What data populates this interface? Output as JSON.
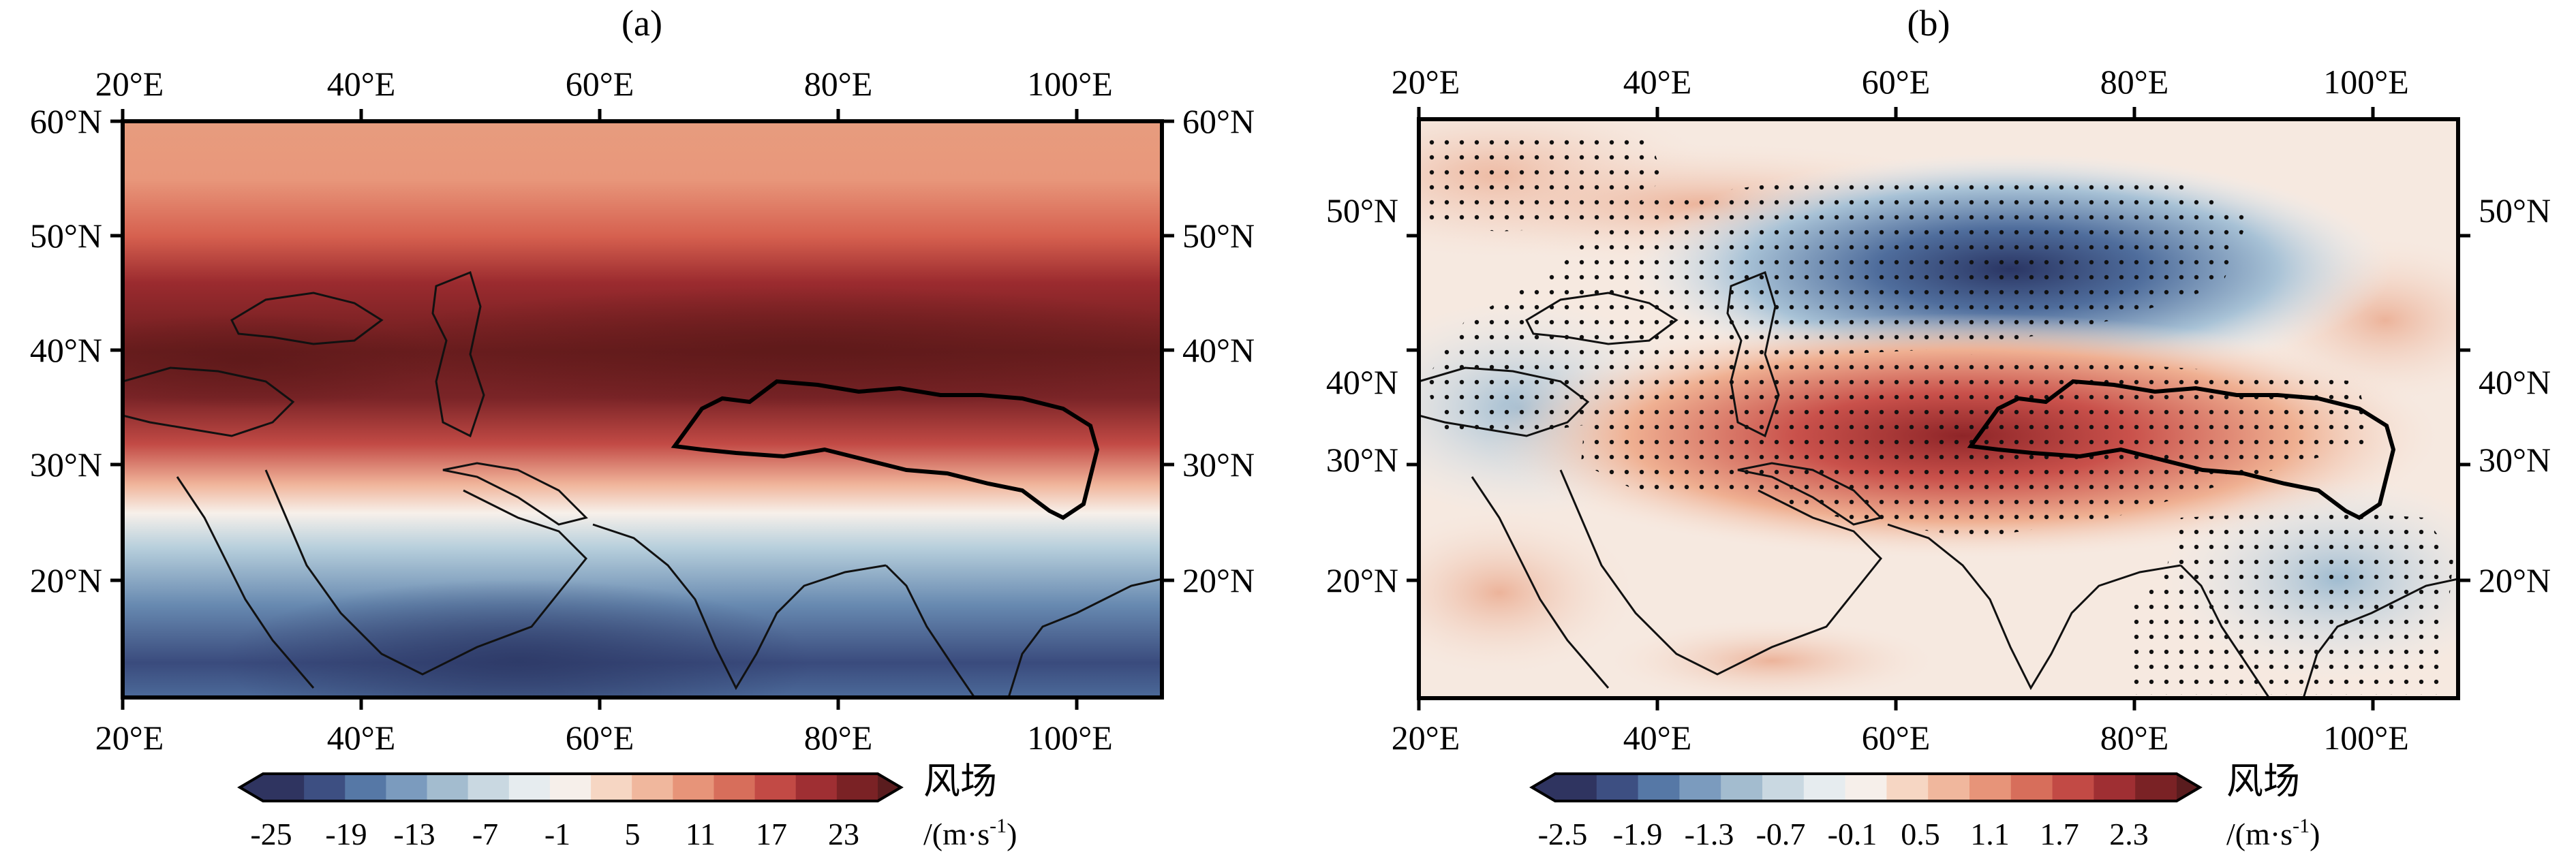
{
  "panels": [
    {
      "id": "a",
      "title": "(a)",
      "lon_labels": [
        "20°E",
        "40°E",
        "60°E",
        "80°E",
        "100°E"
      ],
      "lat_labels": [
        "60°N",
        "50°N",
        "40°N",
        "30°N",
        "20°N"
      ],
      "colorbar": {
        "name": "风场",
        "unit_prefix": "/(m·s",
        "unit_sup": "-1",
        "unit_suffix": ")",
        "tick_labels": [
          "-25",
          "-19",
          "-13",
          "-7",
          "-1",
          "5",
          "11",
          "17",
          "23"
        ]
      }
    },
    {
      "id": "b",
      "title": "(b)",
      "lon_labels": [
        "20°E",
        "40°E",
        "60°E",
        "80°E",
        "100°E"
      ],
      "lat_labels": [
        "50°N",
        "40°N",
        "30°N",
        "20°N"
      ],
      "colorbar": {
        "name": "风场",
        "unit_prefix": "/(m·s",
        "unit_sup": "-1",
        "unit_suffix": ")",
        "tick_labels": [
          "-2.5",
          "-1.9",
          "-1.3",
          "-0.7",
          "-0.1",
          "0.5",
          "1.1",
          "1.7",
          "2.3"
        ]
      }
    }
  ],
  "colors": {
    "dark_blue": "#2a3a6a",
    "mid_blue": "#5b7fa8",
    "light_blue": "#b9d0dd",
    "white": "#f6f3ef",
    "light_red": "#f3c2a8",
    "mid_red": "#d9705d",
    "dark_red": "#6b1f1f"
  }
}
